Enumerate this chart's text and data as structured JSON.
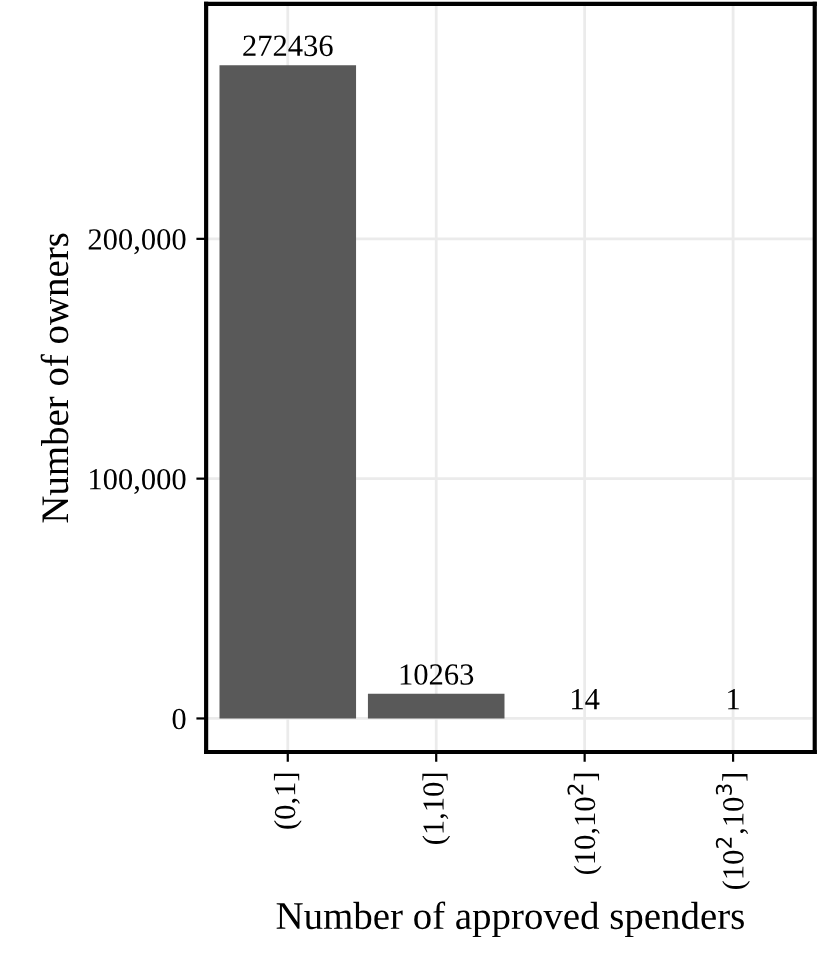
{
  "chart_data": {
    "type": "bar",
    "xlabel": "Number of approved spenders",
    "ylabel": "Number of owners",
    "categories": [
      "(0,1]",
      "(1,10]",
      "(10,10$^{2}$]",
      "(10$^{2}$,10$^{3}$]"
    ],
    "values": [
      272436,
      10263,
      14,
      1
    ],
    "color": "#595959",
    "ylim": [
      -14000,
      298000
    ],
    "yticks": [
      {
        "value": 0,
        "label": "0"
      },
      {
        "value": 100000,
        "label": "100,000"
      },
      {
        "value": 200000,
        "label": "200,000"
      }
    ],
    "grid": true,
    "data_labels": true
  }
}
